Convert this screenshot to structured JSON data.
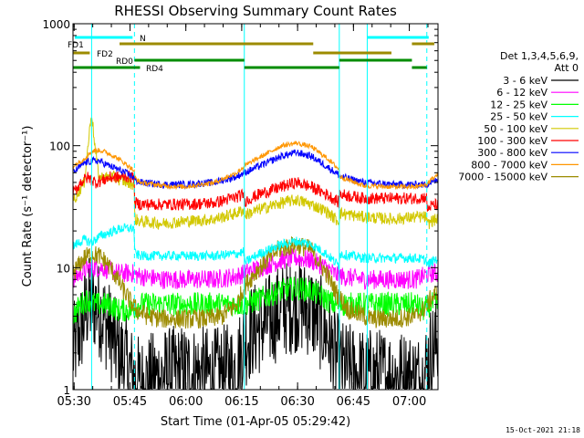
{
  "chart_data": {
    "type": "line",
    "title": "RHESSI Observing Summary Count Rates",
    "xlabel": "Start Time (01-Apr-05 05:29:42)",
    "ylabel": "Count Rate (s⁻¹ detector⁻¹)",
    "yscale": "log",
    "ylim": [
      1,
      1000
    ],
    "xlim_minutes": [
      0,
      98
    ],
    "y_tick_labels": [
      "1",
      "10",
      "100",
      "1000"
    ],
    "x_ticks": [
      {
        "t": 0.3,
        "label": "05:30"
      },
      {
        "t": 15.3,
        "label": "05:45"
      },
      {
        "t": 30.3,
        "label": "06:00"
      },
      {
        "t": 45.3,
        "label": "06:15"
      },
      {
        "t": 60.3,
        "label": "06:30"
      },
      {
        "t": 75.3,
        "label": "06:45"
      },
      {
        "t": 90.3,
        "label": "07:00"
      }
    ],
    "grid": false,
    "legend_position": "right",
    "legend_header": [
      "Det 1,3,4,5,6,9,",
      "Att 0"
    ],
    "timestamp": "15-Oct-2021 21:18",
    "vertical_markers": [
      {
        "t": 5.0,
        "style": "solid"
      },
      {
        "t": 16.5,
        "style": "dashed"
      },
      {
        "t": 46.0,
        "style": "solid"
      },
      {
        "t": 71.5,
        "style": "solid"
      },
      {
        "t": 79.0,
        "style": "solid"
      },
      {
        "t": 95.0,
        "style": "dashed"
      }
    ],
    "flag_bars": [
      {
        "label": "N",
        "color": "#00ffff",
        "segments": [
          [
            0.5,
            16.0
          ],
          [
            79.0,
            95.5
          ]
        ]
      },
      {
        "label": "FD1",
        "color": "#9c8b00",
        "segments": [
          [
            12.5,
            64.5
          ],
          [
            91.0,
            97.0
          ]
        ]
      },
      {
        "label": "FD2",
        "color": "#9c8b00",
        "segments": [
          [
            0.0,
            4.5
          ],
          [
            64.5,
            85.5
          ]
        ]
      },
      {
        "label": "RD0",
        "color": "#008c00",
        "segments": [
          [
            16.5,
            46.0
          ],
          [
            71.5,
            91.0
          ]
        ]
      },
      {
        "label": "RD4",
        "color": "#008c00",
        "segments": [
          [
            0.0,
            18.0
          ],
          [
            46.0,
            71.5
          ],
          [
            91.0,
            95.0
          ]
        ]
      }
    ],
    "series": [
      {
        "name": "3 - 6 keV",
        "color": "#000000",
        "noise": 0.4,
        "points": [
          [
            0,
            2
          ],
          [
            2,
            3
          ],
          [
            4,
            5
          ],
          [
            6,
            5
          ],
          [
            8,
            4
          ],
          [
            10,
            3
          ],
          [
            12,
            2
          ],
          [
            14,
            1.7
          ],
          [
            16,
            1.3
          ],
          [
            18,
            1.1
          ],
          [
            24,
            1.3
          ],
          [
            30,
            1.4
          ],
          [
            38,
            1.3
          ],
          [
            44,
            1.5
          ],
          [
            46,
            2.5
          ],
          [
            48,
            3
          ],
          [
            52,
            3.5
          ],
          [
            56,
            4.5
          ],
          [
            60,
            5
          ],
          [
            64,
            4.5
          ],
          [
            68,
            3
          ],
          [
            70,
            2
          ],
          [
            72,
            1.5
          ],
          [
            78,
            1.3
          ],
          [
            86,
            1.3
          ],
          [
            92,
            1.2
          ],
          [
            94,
            1.2
          ],
          [
            96,
            2
          ],
          [
            98,
            2.5
          ]
        ]
      },
      {
        "name": "6 - 12 keV",
        "color": "#ff00ff",
        "noise": 0.08,
        "points": [
          [
            0,
            8
          ],
          [
            2,
            9
          ],
          [
            4,
            10
          ],
          [
            6,
            10
          ],
          [
            8,
            10
          ],
          [
            10,
            9.5
          ],
          [
            12,
            9
          ],
          [
            14,
            9
          ],
          [
            16,
            9
          ],
          [
            18,
            8.5
          ],
          [
            24,
            8
          ],
          [
            30,
            8
          ],
          [
            38,
            8
          ],
          [
            44,
            8.5
          ],
          [
            46,
            9
          ],
          [
            50,
            10
          ],
          [
            56,
            11.5
          ],
          [
            60,
            12
          ],
          [
            64,
            11.5
          ],
          [
            68,
            10
          ],
          [
            70,
            9
          ],
          [
            72,
            8.5
          ],
          [
            78,
            8
          ],
          [
            86,
            8
          ],
          [
            92,
            8
          ],
          [
            94,
            8.5
          ],
          [
            96,
            9
          ],
          [
            98,
            9
          ]
        ]
      },
      {
        "name": "12 - 25 keV",
        "color": "#00ff00",
        "noise": 0.1,
        "points": [
          [
            0,
            4
          ],
          [
            2,
            5
          ],
          [
            4,
            5.5
          ],
          [
            6,
            5
          ],
          [
            8,
            5
          ],
          [
            10,
            5
          ],
          [
            12,
            4.5
          ],
          [
            14,
            4.5
          ],
          [
            16,
            4.5
          ],
          [
            18,
            5
          ],
          [
            24,
            5
          ],
          [
            30,
            5
          ],
          [
            38,
            5
          ],
          [
            44,
            5
          ],
          [
            46,
            5
          ],
          [
            50,
            5.5
          ],
          [
            56,
            6.5
          ],
          [
            60,
            6.8
          ],
          [
            64,
            6.5
          ],
          [
            68,
            5.5
          ],
          [
            70,
            5
          ],
          [
            72,
            5
          ],
          [
            78,
            5
          ],
          [
            86,
            5
          ],
          [
            92,
            5
          ],
          [
            94,
            4.5
          ],
          [
            96,
            5
          ],
          [
            98,
            5
          ]
        ]
      },
      {
        "name": "25 - 50 keV",
        "color": "#00ffff",
        "noise": 0.04,
        "points": [
          [
            0,
            15
          ],
          [
            3,
            17
          ],
          [
            5,
            16
          ],
          [
            7,
            18
          ],
          [
            9,
            19
          ],
          [
            11,
            20
          ],
          [
            13,
            21
          ],
          [
            15,
            21
          ],
          [
            16.4,
            21
          ],
          [
            16.6,
            13
          ],
          [
            18,
            12.5
          ],
          [
            24,
            12.5
          ],
          [
            30,
            12.5
          ],
          [
            38,
            12.5
          ],
          [
            44,
            13
          ],
          [
            45.9,
            13.5
          ],
          [
            46.1,
            11
          ],
          [
            50,
            13
          ],
          [
            56,
            15.5
          ],
          [
            60,
            16.5
          ],
          [
            64,
            15.5
          ],
          [
            68,
            13
          ],
          [
            70.5,
            11
          ],
          [
            71.4,
            10.5
          ],
          [
            71.6,
            13
          ],
          [
            78,
            12
          ],
          [
            86,
            12
          ],
          [
            92,
            12
          ],
          [
            94.9,
            11.5
          ],
          [
            95.1,
            10.5
          ],
          [
            96,
            11
          ],
          [
            98,
            12
          ]
        ]
      },
      {
        "name": "50 - 100 keV",
        "color": "#d2c800",
        "noise": 0.05,
        "points": [
          [
            0,
            35
          ],
          [
            3,
            50
          ],
          [
            5,
            190
          ],
          [
            6,
            90
          ],
          [
            7,
            55
          ],
          [
            9,
            55
          ],
          [
            11,
            55
          ],
          [
            13,
            52
          ],
          [
            15,
            50
          ],
          [
            16.4,
            48
          ],
          [
            16.6,
            25
          ],
          [
            18,
            24
          ],
          [
            24,
            23
          ],
          [
            30,
            24
          ],
          [
            38,
            25
          ],
          [
            44,
            28
          ],
          [
            45.9,
            30
          ],
          [
            46.1,
            27
          ],
          [
            50,
            30
          ],
          [
            56,
            34
          ],
          [
            60,
            36
          ],
          [
            64,
            33
          ],
          [
            68,
            29
          ],
          [
            70.5,
            25
          ],
          [
            71.4,
            24
          ],
          [
            71.6,
            28
          ],
          [
            78,
            26
          ],
          [
            86,
            25
          ],
          [
            92,
            26
          ],
          [
            94.9,
            26
          ],
          [
            95.1,
            22
          ],
          [
            96,
            24
          ],
          [
            98,
            25
          ]
        ]
      },
      {
        "name": "100 - 300 keV",
        "color": "#ff0000",
        "noise": 0.05,
        "points": [
          [
            0,
            40
          ],
          [
            2,
            50
          ],
          [
            4,
            55
          ],
          [
            6,
            50
          ],
          [
            8,
            52
          ],
          [
            10,
            55
          ],
          [
            12,
            55
          ],
          [
            14,
            56
          ],
          [
            16.4,
            55
          ],
          [
            16.6,
            34
          ],
          [
            18,
            33
          ],
          [
            24,
            33
          ],
          [
            30,
            33
          ],
          [
            38,
            34
          ],
          [
            44,
            38
          ],
          [
            45.9,
            40
          ],
          [
            46.1,
            35
          ],
          [
            50,
            40
          ],
          [
            56,
            46
          ],
          [
            60,
            50
          ],
          [
            64,
            46
          ],
          [
            68,
            40
          ],
          [
            70.5,
            36
          ],
          [
            71.4,
            34
          ],
          [
            71.6,
            40
          ],
          [
            78,
            37
          ],
          [
            86,
            37
          ],
          [
            92,
            37
          ],
          [
            94.9,
            38
          ],
          [
            95.1,
            30
          ],
          [
            96,
            32
          ],
          [
            98,
            33
          ]
        ]
      },
      {
        "name": "300 - 800 keV",
        "color": "#0000ff",
        "noise": 0.03,
        "points": [
          [
            0,
            60
          ],
          [
            3,
            72
          ],
          [
            5,
            75
          ],
          [
            7,
            75
          ],
          [
            9,
            70
          ],
          [
            11,
            66
          ],
          [
            13,
            62
          ],
          [
            15,
            58
          ],
          [
            16.4,
            55
          ],
          [
            16.6,
            52
          ],
          [
            18,
            50
          ],
          [
            24,
            48
          ],
          [
            30,
            48
          ],
          [
            38,
            50
          ],
          [
            44,
            56
          ],
          [
            46,
            60
          ],
          [
            50,
            68
          ],
          [
            56,
            82
          ],
          [
            60,
            88
          ],
          [
            64,
            82
          ],
          [
            68,
            68
          ],
          [
            70.5,
            60
          ],
          [
            71.4,
            58
          ],
          [
            71.6,
            56
          ],
          [
            78,
            50
          ],
          [
            86,
            48
          ],
          [
            92,
            48
          ],
          [
            94.9,
            48
          ],
          [
            96,
            50
          ],
          [
            98,
            52
          ]
        ]
      },
      {
        "name": "800 - 7000 keV",
        "color": "#ff9600",
        "noise": 0.02,
        "points": [
          [
            0,
            68
          ],
          [
            3,
            78
          ],
          [
            5,
            90
          ],
          [
            7,
            92
          ],
          [
            9,
            88
          ],
          [
            11,
            82
          ],
          [
            13,
            75
          ],
          [
            15,
            68
          ],
          [
            16.4,
            62
          ],
          [
            16.6,
            55
          ],
          [
            18,
            50
          ],
          [
            24,
            47
          ],
          [
            30,
            46
          ],
          [
            38,
            50
          ],
          [
            44,
            60
          ],
          [
            46,
            68
          ],
          [
            50,
            80
          ],
          [
            56,
            100
          ],
          [
            60,
            105
          ],
          [
            64,
            98
          ],
          [
            68,
            80
          ],
          [
            70.5,
            68
          ],
          [
            71.4,
            64
          ],
          [
            71.6,
            56
          ],
          [
            78,
            47
          ],
          [
            86,
            46
          ],
          [
            92,
            46
          ],
          [
            94.9,
            48
          ],
          [
            96,
            52
          ],
          [
            98,
            58
          ]
        ]
      },
      {
        "name": "7000 - 15000 keV",
        "color": "#9c8b00",
        "noise": 0.08,
        "points": [
          [
            0,
            9
          ],
          [
            3,
            12
          ],
          [
            5,
            13
          ],
          [
            7,
            12.5
          ],
          [
            9,
            11
          ],
          [
            11,
            9
          ],
          [
            13,
            7
          ],
          [
            15,
            5.5
          ],
          [
            17,
            4.5
          ],
          [
            20,
            4
          ],
          [
            24,
            3.8
          ],
          [
            30,
            3.8
          ],
          [
            36,
            3.8
          ],
          [
            40,
            4
          ],
          [
            44,
            5
          ],
          [
            46,
            7
          ],
          [
            50,
            10
          ],
          [
            55,
            14
          ],
          [
            60,
            15.5
          ],
          [
            64,
            14
          ],
          [
            68,
            9
          ],
          [
            71,
            6
          ],
          [
            74,
            4.5
          ],
          [
            80,
            3.8
          ],
          [
            86,
            3.8
          ],
          [
            92,
            4
          ],
          [
            94,
            4.5
          ],
          [
            96,
            5.5
          ],
          [
            98,
            6.5
          ]
        ]
      }
    ]
  }
}
